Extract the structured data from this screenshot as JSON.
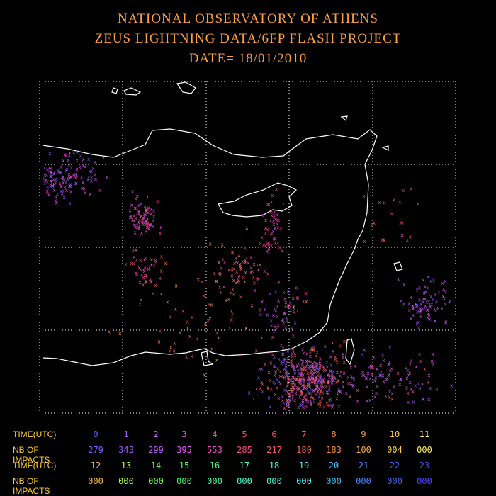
{
  "header": {
    "line1": "NATIONAL OBSERVATORY OF ATHENS",
    "line2": "ZEUS LIGHTNING DATA/6FP FLASH PROJECT",
    "line3": "DATE= 18/01/2010"
  },
  "colors": {
    "text": "#ffa040",
    "label": "#ffcc33",
    "grid": "#ffffff",
    "coastline": "#ffffff",
    "background": "#000000"
  },
  "stroke_marker": "x",
  "legend": {
    "time_label": "TIME(UTC)",
    "impacts_label": "NB OF IMPACTS",
    "row1_hours": [
      "0",
      "1",
      "2",
      "3",
      "4",
      "5",
      "6",
      "7",
      "8",
      "9",
      "10",
      "11"
    ],
    "row1_counts": [
      "279",
      "343",
      "299",
      "395",
      "553",
      "285",
      "217",
      "180",
      "183",
      "100",
      "004",
      "000"
    ],
    "row2_hours": [
      "12",
      "13",
      "14",
      "15",
      "16",
      "17",
      "18",
      "19",
      "20",
      "21",
      "22",
      "23"
    ],
    "row2_counts": [
      "000",
      "000",
      "000",
      "000",
      "000",
      "000",
      "000",
      "000",
      "000",
      "000",
      "000",
      "000"
    ],
    "hour_colors": [
      "#7a5cff",
      "#9a55ff",
      "#c35cff",
      "#ea55ff",
      "#ff44d0",
      "#ff4488",
      "#ff5566",
      "#ff6644",
      "#ff8844",
      "#ffaa44",
      "#ffcc44",
      "#ffee66",
      "#ffbb44",
      "#aaff44",
      "#66ff44",
      "#44ff66",
      "#44ff99",
      "#44ffcc",
      "#44ffee",
      "#44eeff",
      "#44bbff",
      "#4488ff",
      "#4466ff",
      "#5544ff"
    ]
  }
}
